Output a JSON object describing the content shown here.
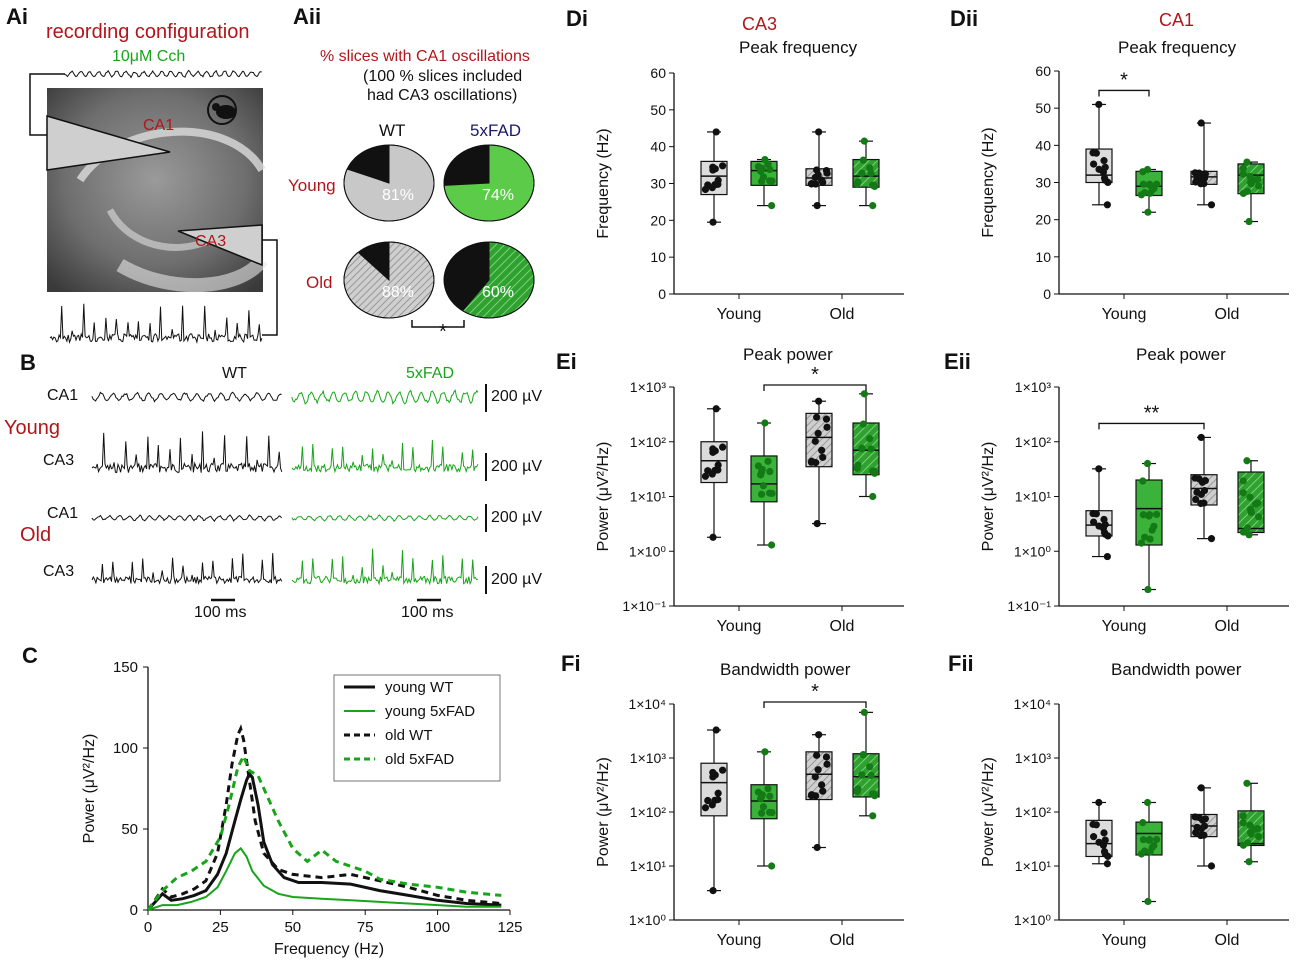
{
  "colors": {
    "red": "#b0161b",
    "green": "#18a51a",
    "navy": "#1a1a6e",
    "grey": "#c8c8c8",
    "black": "#111111"
  },
  "panels": {
    "Ai": "Ai",
    "Aii": "Aii",
    "B": "B",
    "C": "C",
    "Di": "Di",
    "Dii": "Dii",
    "Ei": "Ei",
    "Eii": "Eii",
    "Fi": "Fi",
    "Fii": "Fii"
  },
  "panel_a": {
    "title": "recording configuration",
    "drug": "10μM Cch",
    "ca1_label": "CA1",
    "ca3_label": "CA3"
  },
  "panel_aii": {
    "title": "% slices with CA1 oscillations",
    "note_line1": "(100 % slices included",
    "note_line2": "had CA3 oscillations)",
    "col_wt": "WT",
    "col_fad": "5xFAD",
    "row_young": "Young",
    "row_old": "Old",
    "sig": "*"
  },
  "panel_b": {
    "wt": "WT",
    "fad": "5xFAD",
    "young": "Young",
    "old": "Old",
    "ca1": "CA1",
    "ca3": "CA3",
    "scale_v": "200 µV",
    "scale_t": "100 ms"
  },
  "headers": {
    "ca3": "CA3",
    "ca1": "CA1",
    "peak_frequency": "Peak frequency",
    "peak_power": "Peak power",
    "bandwidth_power": "Bandwidth power"
  },
  "chart_data": [
    {
      "id": "Aii-pie",
      "type": "pie",
      "title": "% slices with CA1 oscillations",
      "series": [
        {
          "name": "young WT",
          "value": 81,
          "label": "81%"
        },
        {
          "name": "young 5xFAD",
          "value": 74,
          "label": "74%"
        },
        {
          "name": "old WT",
          "value": 88,
          "label": "88%"
        },
        {
          "name": "old 5xFAD",
          "value": 60,
          "label": "60%"
        }
      ]
    },
    {
      "id": "C",
      "type": "line",
      "xlabel": "Frequency (Hz)",
      "ylabel": "Power (μV²/Hz)",
      "xlim": [
        0,
        125
      ],
      "ylim": [
        0,
        150
      ],
      "xticks": [
        "0",
        "25",
        "50",
        "75",
        "100",
        "125"
      ],
      "yticks": [
        "0",
        "50",
        "100",
        "150"
      ],
      "legend": [
        "young WT",
        "young 5xFAD",
        "old WT",
        "old 5xFAD"
      ],
      "series": [
        {
          "name": "young WT",
          "x": [
            0,
            2,
            5,
            8,
            12,
            16,
            20,
            24,
            27,
            30,
            32,
            34,
            35,
            36,
            38,
            40,
            43,
            47,
            52,
            60,
            70,
            80,
            90,
            100,
            110,
            122
          ],
          "y": [
            0,
            4,
            10,
            6,
            7,
            9,
            12,
            22,
            35,
            55,
            68,
            80,
            84,
            82,
            65,
            42,
            28,
            20,
            17,
            17,
            16,
            12,
            9,
            6,
            4,
            3
          ]
        },
        {
          "name": "young 5xFAD",
          "x": [
            0,
            5,
            10,
            15,
            20,
            24,
            27,
            30,
            32,
            34,
            36,
            40,
            45,
            50,
            60,
            70,
            80,
            90,
            100,
            110,
            122
          ],
          "y": [
            0,
            3,
            3,
            5,
            8,
            14,
            24,
            35,
            38,
            33,
            24,
            15,
            10,
            8,
            7,
            6,
            5,
            4,
            3,
            2,
            2
          ]
        },
        {
          "name": "old WT",
          "x": [
            0,
            2,
            5,
            8,
            12,
            16,
            20,
            24,
            27,
            29,
            31,
            32,
            33,
            35,
            37,
            40,
            45,
            50,
            60,
            70,
            80,
            90,
            100,
            110,
            122
          ],
          "y": [
            0,
            5,
            13,
            8,
            10,
            13,
            18,
            35,
            65,
            90,
            108,
            112,
            105,
            80,
            55,
            35,
            25,
            22,
            20,
            22,
            18,
            14,
            9,
            6,
            4
          ]
        },
        {
          "name": "old 5xFAD",
          "x": [
            0,
            5,
            10,
            15,
            20,
            25,
            28,
            31,
            33,
            35,
            38,
            40,
            45,
            50,
            55,
            60,
            65,
            70,
            75,
            80,
            90,
            100,
            110,
            122
          ],
          "y": [
            0,
            12,
            20,
            24,
            30,
            45,
            65,
            88,
            95,
            86,
            83,
            75,
            55,
            38,
            30,
            37,
            30,
            27,
            24,
            19,
            16,
            14,
            11,
            9
          ]
        }
      ]
    },
    {
      "id": "Di",
      "type": "box",
      "title": "CA3 Peak frequency",
      "ylabel": "Frequency (Hz)",
      "scale": "linear",
      "ylim": [
        0,
        60
      ],
      "yticks": [
        "0",
        "10",
        "20",
        "30",
        "40",
        "50",
        "60"
      ],
      "categories": [
        "Young",
        "Old"
      ],
      "groups": [
        {
          "name": "young WT",
          "min": 19.5,
          "q1": 27,
          "median": 32,
          "q3": 36,
          "max": 44
        },
        {
          "name": "young 5xFAD",
          "min": 24,
          "q1": 29.5,
          "median": 33.5,
          "q3": 36,
          "max": 36.5
        },
        {
          "name": "old WT",
          "min": 24,
          "q1": 29.5,
          "median": 31.5,
          "q3": 34,
          "max": 44
        },
        {
          "name": "old 5xFAD",
          "min": 24,
          "q1": 29,
          "median": 32,
          "q3": 36.5,
          "max": 41.5
        }
      ],
      "significance": []
    },
    {
      "id": "Dii",
      "type": "box",
      "title": "CA1 Peak frequency",
      "ylabel": "Frequency (Hz)",
      "scale": "linear",
      "ylim": [
        0,
        60
      ],
      "yticks": [
        "0",
        "10",
        "20",
        "30",
        "40",
        "50",
        "60"
      ],
      "categories": [
        "Young",
        "Old"
      ],
      "groups": [
        {
          "name": "young WT",
          "min": 24,
          "q1": 30,
          "median": 32,
          "q3": 39,
          "max": 51
        },
        {
          "name": "young 5xFAD",
          "min": 22,
          "q1": 26.5,
          "median": 29,
          "q3": 33,
          "max": 33.5
        },
        {
          "name": "old WT",
          "min": 24,
          "q1": 29.5,
          "median": 31.5,
          "q3": 33,
          "max": 46
        },
        {
          "name": "old 5xFAD",
          "min": 19.5,
          "q1": 27,
          "median": 32,
          "q3": 35,
          "max": 35.5
        }
      ],
      "significance": [
        {
          "from": 0,
          "to": 1,
          "label": "*"
        }
      ]
    },
    {
      "id": "Ei",
      "type": "box",
      "title": "Peak power",
      "ylabel": "Power (μV²/Hz)",
      "scale": "log",
      "ylim": [
        -1,
        3
      ],
      "yticks": [
        "1×10⁻¹",
        "1×10⁰",
        "1×10¹",
        "1×10²",
        "1×10³"
      ],
      "categories": [
        "Young",
        "Old"
      ],
      "groups": [
        {
          "name": "young WT",
          "min": 1.8,
          "q1": 18,
          "median": 45,
          "q3": 100,
          "max": 400
        },
        {
          "name": "young 5xFAD",
          "min": 1.3,
          "q1": 8,
          "median": 17,
          "q3": 55,
          "max": 220
        },
        {
          "name": "old WT",
          "min": 3.2,
          "q1": 35,
          "median": 120,
          "q3": 330,
          "max": 550
        },
        {
          "name": "old 5xFAD",
          "min": 10,
          "q1": 25,
          "median": 70,
          "q3": 220,
          "max": 750
        }
      ],
      "significance": [
        {
          "from": 1,
          "to": 3,
          "label": "*"
        }
      ]
    },
    {
      "id": "Eii",
      "type": "box",
      "title": "Peak power",
      "ylabel": "Power (μV²/Hz)",
      "scale": "log",
      "ylim": [
        -1,
        3
      ],
      "yticks": [
        "1×10⁻¹",
        "1×10⁰",
        "1×10¹",
        "1×10²",
        "1×10³"
      ],
      "categories": [
        "Young",
        "Old"
      ],
      "groups": [
        {
          "name": "young WT",
          "min": 0.8,
          "q1": 1.9,
          "median": 3,
          "q3": 5.5,
          "max": 32
        },
        {
          "name": "young 5xFAD",
          "min": 0.2,
          "q1": 1.3,
          "median": 6,
          "q3": 20,
          "max": 40
        },
        {
          "name": "old WT",
          "min": 1.7,
          "q1": 7,
          "median": 14,
          "q3": 25,
          "max": 120
        },
        {
          "name": "old 5xFAD",
          "min": 2,
          "q1": 2.2,
          "median": 2.6,
          "q3": 28,
          "max": 45
        }
      ],
      "significance": [
        {
          "from": 0,
          "to": 2,
          "label": "**"
        }
      ]
    },
    {
      "id": "Fi",
      "type": "box",
      "title": "Bandwidth power",
      "ylabel": "Power (μV²/Hz)",
      "scale": "log",
      "ylim": [
        0,
        4
      ],
      "yticks": [
        "1×10⁰",
        "1×10¹",
        "1×10²",
        "1×10³",
        "1×10⁴"
      ],
      "categories": [
        "Young",
        "Old"
      ],
      "groups": [
        {
          "name": "young WT",
          "min": 3.5,
          "q1": 85,
          "median": 350,
          "q3": 800,
          "max": 3300
        },
        {
          "name": "young 5xFAD",
          "min": 10,
          "q1": 75,
          "median": 160,
          "q3": 320,
          "max": 1300
        },
        {
          "name": "old WT",
          "min": 22,
          "q1": 170,
          "median": 500,
          "q3": 1300,
          "max": 2700
        },
        {
          "name": "old 5xFAD",
          "min": 85,
          "q1": 190,
          "median": 450,
          "q3": 1200,
          "max": 7000
        }
      ],
      "significance": [
        {
          "from": 1,
          "to": 3,
          "label": "*"
        }
      ]
    },
    {
      "id": "Fii",
      "type": "box",
      "title": "Bandwidth power",
      "ylabel": "Power (μV²/Hz)",
      "scale": "log",
      "ylim": [
        0,
        4
      ],
      "yticks": [
        "1×10⁰",
        "1×10¹",
        "1×10²",
        "1×10³",
        "1×10⁴"
      ],
      "categories": [
        "Young",
        "Old"
      ],
      "groups": [
        {
          "name": "young WT",
          "min": 11,
          "q1": 15,
          "median": 26,
          "q3": 70,
          "max": 150
        },
        {
          "name": "young 5xFAD",
          "min": 2.2,
          "q1": 16,
          "median": 40,
          "q3": 65,
          "max": 150
        },
        {
          "name": "old WT",
          "min": 10,
          "q1": 35,
          "median": 55,
          "q3": 90,
          "max": 280
        },
        {
          "name": "old 5xFAD",
          "min": 12,
          "q1": 24,
          "median": 26,
          "q3": 105,
          "max": 340
        }
      ],
      "significance": []
    }
  ]
}
